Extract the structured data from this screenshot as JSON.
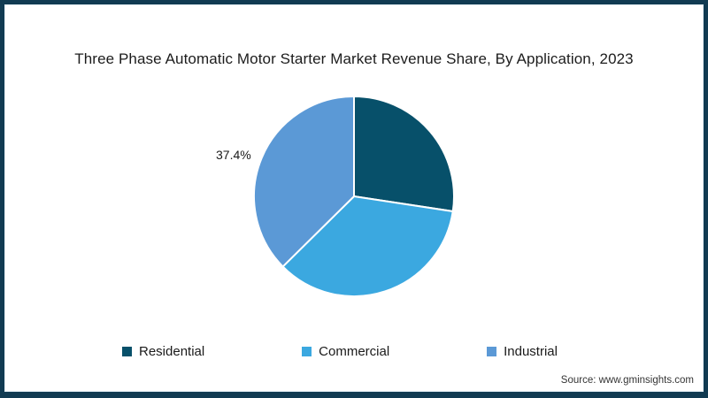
{
  "frame_color": "#113B52",
  "title": "Three Phase Automatic Motor Starter Market Revenue Share, By Application, 2023",
  "source": "Source: www.gminsights.com",
  "chart_data": {
    "type": "pie",
    "title": "Three Phase Automatic Motor Starter Market Revenue Share, By Application, 2023",
    "start_angle_deg": 0,
    "direction": "clockwise",
    "legend_position": "bottom",
    "series": [
      {
        "name": "Residential",
        "value": 27.4,
        "color": "#07506A",
        "label": ""
      },
      {
        "name": "Commercial",
        "value": 35.2,
        "color": "#3BA8E0",
        "label": ""
      },
      {
        "name": "Industrial",
        "value": 37.4,
        "color": "#5B99D6",
        "label": "37.4%"
      }
    ]
  }
}
